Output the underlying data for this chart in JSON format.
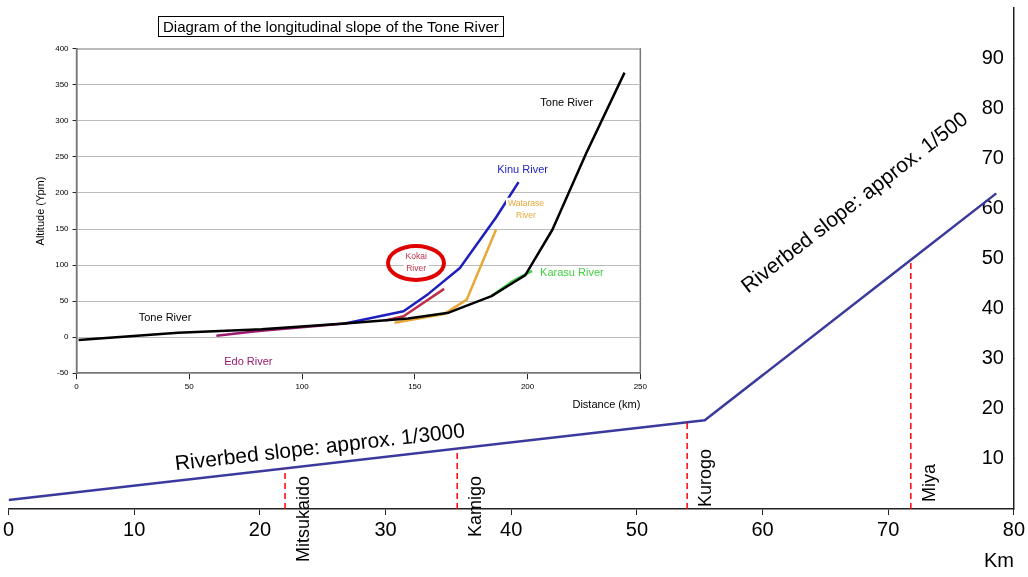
{
  "chart_data": [
    {
      "type": "line",
      "xlabel": "Km",
      "x": [
        0,
        55.4,
        78.6
      ],
      "values": [
        1.8,
        17.7,
        63
      ],
      "color": "#3a3a9e",
      "xlim": [
        0,
        80
      ],
      "xticks": [
        0,
        10,
        20,
        30,
        40,
        50,
        60,
        70,
        80
      ],
      "ylim": [
        0,
        100
      ],
      "yticks": [
        10,
        20,
        30,
        40,
        50,
        60,
        70,
        80,
        90
      ],
      "grid": false,
      "marker": "none",
      "line_style": "solid",
      "ref_lines": [
        {
          "axis": "x",
          "value": 22,
          "label": "Mitsukaido",
          "color": "#ff0000",
          "line_style": "dashed"
        },
        {
          "axis": "x",
          "value": 35.7,
          "label": "Kamigo",
          "color": "#ff0000",
          "line_style": "dashed"
        },
        {
          "axis": "x",
          "value": 54,
          "label": "Kurogo",
          "color": "#ff0000",
          "line_style": "dashed"
        },
        {
          "axis": "x",
          "value": 71.8,
          "label": "Miya",
          "color": "#ff0000",
          "line_style": "dashed"
        }
      ],
      "annotations": [
        "Riverbed slope: approx. 1/3000",
        "Riverbed slope: approx. 1/500"
      ]
    },
    {
      "type": "line",
      "title": "Diagram of the longitudinal slope of the Tone River",
      "xlabel": "Distance (km)",
      "ylabel": "Altitude (Ypm)",
      "xlim": [
        0,
        250
      ],
      "xticks": [
        0,
        50,
        100,
        150,
        200,
        250
      ],
      "ylim": [
        -50,
        400
      ],
      "yticks": [
        -50,
        0,
        50,
        100,
        150,
        200,
        250,
        300,
        350,
        400
      ],
      "grid": "y",
      "marker": "none",
      "line_style": "solid",
      "legend": false,
      "annotations": [
        "Tone River"
      ],
      "series": [
        {
          "name": "Tone River",
          "color": "#000000",
          "x": [
            0.9,
            45,
            82,
            119,
            147,
            165,
            184,
            199,
            211,
            226,
            243
          ],
          "values": [
            -4,
            6,
            11,
            19,
            26,
            34,
            57,
            86,
            149,
            255,
            367
          ]
        },
        {
          "name": "Kinu River",
          "color": "#1f1fbf",
          "x": [
            119,
            145,
            156,
            170,
            186,
            196
          ],
          "values": [
            19,
            36,
            60,
            96,
            166,
            215
          ]
        },
        {
          "name": "Watarase River",
          "color": "#e8a838",
          "x": [
            141,
            163,
            173,
            186
          ],
          "values": [
            20,
            32,
            52,
            149
          ]
        },
        {
          "name": "Kokai River",
          "color": "#c0304a",
          "x": [
            137,
            145,
            163
          ],
          "values": [
            23,
            29,
            67
          ]
        },
        {
          "name": "Karasu River",
          "color": "#40d040",
          "x": [
            184,
            193,
            202
          ],
          "values": [
            57,
            77,
            92
          ]
        },
        {
          "name": "Edo River",
          "color": "#9a1a6e",
          "x": [
            62,
            82,
            119
          ],
          "values": [
            2,
            9,
            19
          ]
        }
      ]
    }
  ]
}
